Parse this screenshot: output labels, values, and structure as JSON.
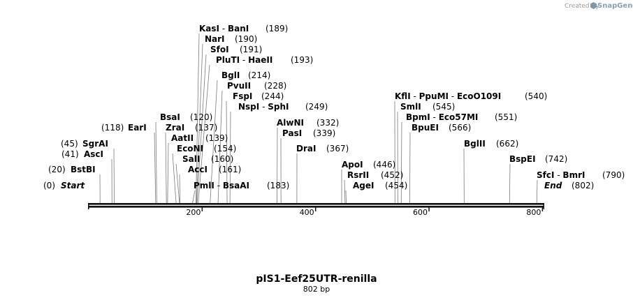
{
  "credit": {
    "prefix": "Created by",
    "brand": "SnapGene",
    "logo_icon": "snapgene-logo-icon"
  },
  "map": {
    "title": "pIS1-Eef25UTR-renilla",
    "length_label": "802 bp",
    "length": 802,
    "ticks": [
      {
        "value": 200,
        "label": "200"
      },
      {
        "value": 400,
        "label": "400"
      },
      {
        "value": 600,
        "label": "600"
      },
      {
        "value": 800,
        "label": "800"
      }
    ],
    "sites": [
      {
        "id": "start",
        "names": [
          "Start"
        ],
        "pos_label": "(0)",
        "positions": [
          0
        ],
        "italic": true,
        "side": "left"
      },
      {
        "id": "bstbi",
        "names": [
          "BstBI"
        ],
        "pos_label": "(20)",
        "positions": [
          20
        ],
        "side": "left"
      },
      {
        "id": "asci",
        "names": [
          "AscI"
        ],
        "pos_label": "(41)",
        "positions": [
          41
        ],
        "side": "left"
      },
      {
        "id": "sgrai",
        "names": [
          "SgrAI"
        ],
        "pos_label": "(45)",
        "positions": [
          45
        ],
        "side": "left"
      },
      {
        "id": "eari",
        "names": [
          "EarI"
        ],
        "pos_label": "(118)",
        "positions": [
          118
        ],
        "side": "left"
      },
      {
        "id": "bsai",
        "names": [
          "BsaI"
        ],
        "pos_label": "(120)",
        "positions": [
          120
        ]
      },
      {
        "id": "kasi",
        "names": [
          "KasI",
          "BanI"
        ],
        "pos_label": "(189)",
        "positions": [
          189
        ]
      },
      {
        "id": "nari",
        "names": [
          "NarI"
        ],
        "pos_label": "(190)",
        "positions": [
          190
        ]
      },
      {
        "id": "sfoi",
        "names": [
          "SfoI"
        ],
        "pos_label": "(191)",
        "positions": [
          191
        ]
      },
      {
        "id": "pluti",
        "names": [
          "PluTI",
          "HaeII"
        ],
        "pos_label": "(193)",
        "positions": [
          193
        ]
      },
      {
        "id": "zrai",
        "names": [
          "ZraI"
        ],
        "pos_label": "(137)",
        "positions": [
          137
        ]
      },
      {
        "id": "aatii",
        "names": [
          "AatII"
        ],
        "pos_label": "(139)",
        "positions": [
          139
        ]
      },
      {
        "id": "econi",
        "names": [
          "EcoNI"
        ],
        "pos_label": "(154)",
        "positions": [
          154
        ]
      },
      {
        "id": "sali",
        "names": [
          "SalI"
        ],
        "pos_label": "(160)",
        "positions": [
          160
        ]
      },
      {
        "id": "acci",
        "names": [
          "AccI"
        ],
        "pos_label": "(161)",
        "positions": [
          161
        ]
      },
      {
        "id": "pmli",
        "names": [
          "PmlI",
          "BsaAI"
        ],
        "pos_label": "(183)",
        "positions": [
          183
        ]
      },
      {
        "id": "bgli",
        "names": [
          "BglI"
        ],
        "pos_label": "(214)",
        "positions": [
          214
        ]
      },
      {
        "id": "pvuii",
        "names": [
          "PvuII"
        ],
        "pos_label": "(228)",
        "positions": [
          228
        ]
      },
      {
        "id": "fspi",
        "names": [
          "FspI"
        ],
        "pos_label": "(244)",
        "positions": [
          244
        ]
      },
      {
        "id": "nspi",
        "names": [
          "NspI",
          "SphI"
        ],
        "pos_label": "(249)",
        "positions": [
          249
        ]
      },
      {
        "id": "alwni",
        "names": [
          "AlwNI"
        ],
        "pos_label": "(332)",
        "positions": [
          332
        ]
      },
      {
        "id": "pasi",
        "names": [
          "PasI"
        ],
        "pos_label": "(339)",
        "positions": [
          339
        ]
      },
      {
        "id": "drai",
        "names": [
          "DraI"
        ],
        "pos_label": "(367)",
        "positions": [
          367
        ]
      },
      {
        "id": "apoi",
        "names": [
          "ApoI"
        ],
        "pos_label": "(446)",
        "positions": [
          446
        ]
      },
      {
        "id": "rsrii",
        "names": [
          "RsrII"
        ],
        "pos_label": "(452)",
        "positions": [
          452
        ]
      },
      {
        "id": "agei",
        "names": [
          "AgeI"
        ],
        "pos_label": "(454)",
        "positions": [
          454
        ]
      },
      {
        "id": "kfli",
        "names": [
          "KflI",
          "PpuMI",
          "EcoO109I"
        ],
        "pos_label": "(540)",
        "positions": [
          540
        ]
      },
      {
        "id": "smli",
        "names": [
          "SmlI"
        ],
        "pos_label": "(545)",
        "positions": [
          545
        ]
      },
      {
        "id": "bpmi",
        "names": [
          "BpmI",
          "Eco57MI"
        ],
        "pos_label": "(551)",
        "positions": [
          551
        ]
      },
      {
        "id": "bpuei",
        "names": [
          "BpuEI"
        ],
        "pos_label": "(566)",
        "positions": [
          566
        ]
      },
      {
        "id": "bglii",
        "names": [
          "BglII"
        ],
        "pos_label": "(662)",
        "positions": [
          662
        ]
      },
      {
        "id": "bspei",
        "names": [
          "BspEI"
        ],
        "pos_label": "(742)",
        "positions": [
          742
        ]
      },
      {
        "id": "sfci",
        "names": [
          "SfcI",
          "BmrI"
        ],
        "pos_label": "(790)",
        "positions": [
          790
        ]
      },
      {
        "id": "end",
        "names": [
          "End"
        ],
        "pos_label": "(802)",
        "positions": [
          802
        ],
        "italic": true
      }
    ]
  }
}
